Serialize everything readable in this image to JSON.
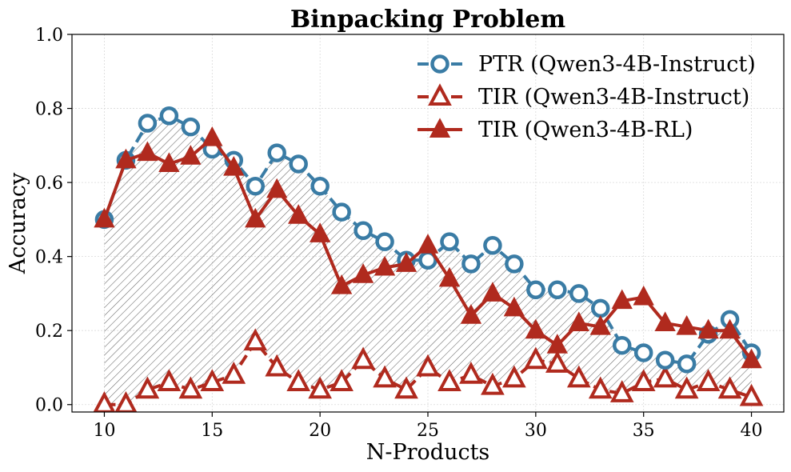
{
  "chart_data": {
    "type": "line",
    "title": "Binpacking Problem",
    "xlabel": "N-Products",
    "ylabel": "Accuracy",
    "xlim": [
      8.5,
      41.5
    ],
    "ylim": [
      -0.02,
      1.0
    ],
    "xticks": [
      10,
      15,
      20,
      25,
      30,
      35,
      40
    ],
    "xtick_labels": [
      "10",
      "15",
      "20",
      "25",
      "30",
      "35",
      "40"
    ],
    "yticks": [
      0.0,
      0.2,
      0.4,
      0.6,
      0.8,
      1.0
    ],
    "ytick_labels": [
      "0.0",
      "0.2",
      "0.4",
      "0.6",
      "0.8",
      "1.0"
    ],
    "grid": true,
    "legend_position": "top-right",
    "shaded_region": "between PTR (Qwen3-4B-Instruct) and TIR (Qwen3-4B-Instruct), hatched",
    "x": [
      10,
      11,
      12,
      13,
      14,
      15,
      16,
      17,
      18,
      19,
      20,
      21,
      22,
      23,
      24,
      25,
      26,
      27,
      28,
      29,
      30,
      31,
      32,
      33,
      34,
      35,
      36,
      37,
      38,
      39,
      40
    ],
    "series": [
      {
        "name": "PTR (Qwen3-4B-Instruct)",
        "color": "#3a7ca5",
        "line_style": "dashed",
        "marker": "circle-open",
        "values": [
          0.5,
          0.66,
          0.76,
          0.78,
          0.75,
          0.69,
          0.66,
          0.59,
          0.68,
          0.65,
          0.59,
          0.52,
          0.47,
          0.44,
          0.39,
          0.39,
          0.44,
          0.38,
          0.43,
          0.38,
          0.31,
          0.31,
          0.3,
          0.26,
          0.16,
          0.14,
          0.12,
          0.11,
          0.19,
          0.23,
          0.14
        ]
      },
      {
        "name": "TIR (Qwen3-4B-Instruct)",
        "color": "#b02a1e",
        "line_style": "dashed",
        "marker": "triangle-open",
        "values": [
          0.0,
          0.0,
          0.04,
          0.06,
          0.04,
          0.06,
          0.08,
          0.17,
          0.1,
          0.06,
          0.04,
          0.06,
          0.12,
          0.07,
          0.04,
          0.1,
          0.06,
          0.08,
          0.05,
          0.07,
          0.12,
          0.11,
          0.07,
          0.04,
          0.03,
          0.06,
          0.07,
          0.04,
          0.06,
          0.04,
          0.02
        ]
      },
      {
        "name": "TIR (Qwen3-4B-RL)",
        "color": "#b02a1e",
        "line_style": "solid",
        "marker": "triangle-filled",
        "values": [
          0.5,
          0.66,
          0.68,
          0.65,
          0.67,
          0.72,
          0.64,
          0.5,
          0.58,
          0.51,
          0.46,
          0.32,
          0.35,
          0.37,
          0.38,
          0.43,
          0.34,
          0.24,
          0.3,
          0.26,
          0.2,
          0.16,
          0.22,
          0.21,
          0.28,
          0.29,
          0.22,
          0.21,
          0.2,
          0.2,
          0.12
        ]
      }
    ]
  }
}
